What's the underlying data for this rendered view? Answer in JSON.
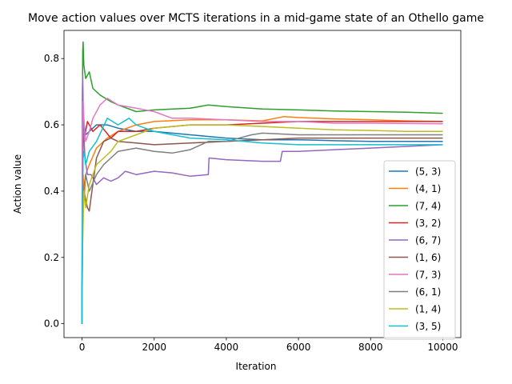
{
  "chart_data": {
    "type": "line",
    "title": "Move action values over MCTS iterations in a mid-game state of an Othello game",
    "xlabel": "Iteration",
    "ylabel": "Action value",
    "xlim": [
      -500,
      10500
    ],
    "ylim": [
      -0.042,
      0.885
    ],
    "xticks": [
      0,
      2000,
      4000,
      6000,
      8000,
      10000
    ],
    "xtick_labels": [
      "0",
      "2000",
      "4000",
      "6000",
      "8000",
      "10000"
    ],
    "yticks": [
      0.0,
      0.2,
      0.4,
      0.6,
      0.8
    ],
    "ytick_labels": [
      "0.0",
      "0.2",
      "0.4",
      "0.6",
      "0.8"
    ],
    "legend_position": "center-right",
    "series": [
      {
        "name": "(5, 3)",
        "color": "#1f77b4",
        "points": [
          [
            0,
            0
          ],
          [
            10,
            0.3
          ],
          [
            30,
            0.55
          ],
          [
            60,
            0.6
          ],
          [
            100,
            0.57
          ],
          [
            200,
            0.58
          ],
          [
            400,
            0.6
          ],
          [
            700,
            0.6
          ],
          [
            1000,
            0.59
          ],
          [
            1500,
            0.58
          ],
          [
            2000,
            0.58
          ],
          [
            3000,
            0.57
          ],
          [
            4000,
            0.56
          ],
          [
            5000,
            0.555
          ],
          [
            6000,
            0.555
          ],
          [
            7000,
            0.552
          ],
          [
            8000,
            0.55
          ],
          [
            9000,
            0.55
          ],
          [
            10000,
            0.55
          ]
        ]
      },
      {
        "name": "(4, 1)",
        "color": "#ff7f0e",
        "points": [
          [
            0,
            0
          ],
          [
            10,
            0.2
          ],
          [
            30,
            0.45
          ],
          [
            60,
            0.38
          ],
          [
            100,
            0.45
          ],
          [
            200,
            0.48
          ],
          [
            400,
            0.53
          ],
          [
            700,
            0.56
          ],
          [
            1000,
            0.58
          ],
          [
            1500,
            0.6
          ],
          [
            2000,
            0.61
          ],
          [
            3000,
            0.615
          ],
          [
            4000,
            0.615
          ],
          [
            5000,
            0.612
          ],
          [
            5600,
            0.625
          ],
          [
            6000,
            0.622
          ],
          [
            7000,
            0.618
          ],
          [
            8000,
            0.615
          ],
          [
            9000,
            0.612
          ],
          [
            10000,
            0.61
          ]
        ]
      },
      {
        "name": "(7, 4)",
        "color": "#2ca02c",
        "points": [
          [
            0,
            0
          ],
          [
            10,
            0.6
          ],
          [
            20,
            0.82
          ],
          [
            30,
            0.85
          ],
          [
            50,
            0.78
          ],
          [
            100,
            0.74
          ],
          [
            200,
            0.76
          ],
          [
            300,
            0.71
          ],
          [
            500,
            0.69
          ],
          [
            800,
            0.67
          ],
          [
            1000,
            0.66
          ],
          [
            1500,
            0.64
          ],
          [
            2000,
            0.645
          ],
          [
            3000,
            0.65
          ],
          [
            3500,
            0.66
          ],
          [
            4000,
            0.655
          ],
          [
            5000,
            0.648
          ],
          [
            6000,
            0.645
          ],
          [
            7000,
            0.642
          ],
          [
            8000,
            0.64
          ],
          [
            9000,
            0.638
          ],
          [
            10000,
            0.635
          ]
        ]
      },
      {
        "name": "(3, 2)",
        "color": "#d62728",
        "points": [
          [
            0,
            0
          ],
          [
            10,
            0.4
          ],
          [
            30,
            0.63
          ],
          [
            80,
            0.57
          ],
          [
            150,
            0.61
          ],
          [
            300,
            0.58
          ],
          [
            500,
            0.6
          ],
          [
            800,
            0.56
          ],
          [
            1000,
            0.58
          ],
          [
            1500,
            0.58
          ],
          [
            2000,
            0.59
          ],
          [
            3000,
            0.6
          ],
          [
            4000,
            0.6
          ],
          [
            5000,
            0.605
          ],
          [
            6000,
            0.61
          ],
          [
            7000,
            0.61
          ],
          [
            8000,
            0.61
          ],
          [
            9000,
            0.61
          ],
          [
            10000,
            0.61
          ]
        ]
      },
      {
        "name": "(6, 7)",
        "color": "#9467bd",
        "points": [
          [
            0,
            0
          ],
          [
            10,
            0.7
          ],
          [
            20,
            0.75
          ],
          [
            40,
            0.6
          ],
          [
            80,
            0.5
          ],
          [
            150,
            0.45
          ],
          [
            250,
            0.45
          ],
          [
            400,
            0.42
          ],
          [
            600,
            0.44
          ],
          [
            800,
            0.43
          ],
          [
            1000,
            0.44
          ],
          [
            1200,
            0.46
          ],
          [
            1500,
            0.45
          ],
          [
            2000,
            0.46
          ],
          [
            2500,
            0.455
          ],
          [
            3000,
            0.445
          ],
          [
            3500,
            0.45
          ],
          [
            3520,
            0.5
          ],
          [
            4000,
            0.495
          ],
          [
            5000,
            0.49
          ],
          [
            5500,
            0.49
          ],
          [
            5550,
            0.52
          ],
          [
            6000,
            0.52
          ],
          [
            7000,
            0.525
          ],
          [
            8000,
            0.53
          ],
          [
            9000,
            0.535
          ],
          [
            10000,
            0.54
          ]
        ]
      },
      {
        "name": "(1, 6)",
        "color": "#8c564b",
        "points": [
          [
            0,
            0
          ],
          [
            10,
            0.3
          ],
          [
            50,
            0.4
          ],
          [
            150,
            0.35
          ],
          [
            200,
            0.34
          ],
          [
            250,
            0.38
          ],
          [
            400,
            0.5
          ],
          [
            600,
            0.55
          ],
          [
            800,
            0.56
          ],
          [
            1000,
            0.55
          ],
          [
            1500,
            0.545
          ],
          [
            2000,
            0.54
          ],
          [
            3000,
            0.545
          ],
          [
            4000,
            0.55
          ],
          [
            5000,
            0.555
          ],
          [
            6000,
            0.56
          ],
          [
            7000,
            0.56
          ],
          [
            8000,
            0.56
          ],
          [
            9000,
            0.56
          ],
          [
            10000,
            0.56
          ]
        ]
      },
      {
        "name": "(7, 3)",
        "color": "#e377c2",
        "points": [
          [
            0,
            0
          ],
          [
            10,
            0.55
          ],
          [
            30,
            0.67
          ],
          [
            60,
            0.6
          ],
          [
            100,
            0.55
          ],
          [
            200,
            0.58
          ],
          [
            300,
            0.62
          ],
          [
            500,
            0.66
          ],
          [
            700,
            0.68
          ],
          [
            1000,
            0.66
          ],
          [
            1500,
            0.65
          ],
          [
            2000,
            0.64
          ],
          [
            2500,
            0.62
          ],
          [
            3000,
            0.62
          ],
          [
            4000,
            0.615
          ],
          [
            5000,
            0.61
          ],
          [
            6000,
            0.61
          ],
          [
            7000,
            0.605
          ],
          [
            8000,
            0.605
          ],
          [
            9000,
            0.604
          ],
          [
            10000,
            0.603
          ]
        ]
      },
      {
        "name": "(6, 1)",
        "color": "#7f7f7f",
        "points": [
          [
            0,
            0
          ],
          [
            10,
            0.25
          ],
          [
            40,
            0.4
          ],
          [
            100,
            0.45
          ],
          [
            200,
            0.4
          ],
          [
            400,
            0.45
          ],
          [
            600,
            0.48
          ],
          [
            800,
            0.5
          ],
          [
            1000,
            0.52
          ],
          [
            1500,
            0.53
          ],
          [
            2000,
            0.52
          ],
          [
            2500,
            0.515
          ],
          [
            3000,
            0.525
          ],
          [
            3500,
            0.55
          ],
          [
            4000,
            0.55
          ],
          [
            4700,
            0.57
          ],
          [
            5000,
            0.575
          ],
          [
            6000,
            0.57
          ],
          [
            7000,
            0.57
          ],
          [
            8000,
            0.57
          ],
          [
            9000,
            0.57
          ],
          [
            10000,
            0.57
          ]
        ]
      },
      {
        "name": "(1, 4)",
        "color": "#bcbd22",
        "points": [
          [
            0,
            0
          ],
          [
            10,
            0.2
          ],
          [
            50,
            0.4
          ],
          [
            100,
            0.35
          ],
          [
            200,
            0.42
          ],
          [
            400,
            0.48
          ],
          [
            600,
            0.5
          ],
          [
            800,
            0.52
          ],
          [
            1000,
            0.55
          ],
          [
            1500,
            0.57
          ],
          [
            2000,
            0.59
          ],
          [
            3000,
            0.6
          ],
          [
            4000,
            0.6
          ],
          [
            5000,
            0.595
          ],
          [
            6000,
            0.59
          ],
          [
            7000,
            0.585
          ],
          [
            8000,
            0.583
          ],
          [
            9000,
            0.58
          ],
          [
            10000,
            0.58
          ]
        ]
      },
      {
        "name": "(3, 5)",
        "color": "#17becf",
        "points": [
          [
            0,
            0
          ],
          [
            10,
            0.4
          ],
          [
            30,
            0.5
          ],
          [
            60,
            0.52
          ],
          [
            100,
            0.48
          ],
          [
            200,
            0.52
          ],
          [
            400,
            0.55
          ],
          [
            700,
            0.62
          ],
          [
            1000,
            0.6
          ],
          [
            1300,
            0.62
          ],
          [
            1500,
            0.6
          ],
          [
            2000,
            0.58
          ],
          [
            3000,
            0.56
          ],
          [
            4000,
            0.555
          ],
          [
            5000,
            0.545
          ],
          [
            6000,
            0.54
          ],
          [
            7000,
            0.54
          ],
          [
            8000,
            0.54
          ],
          [
            9000,
            0.54
          ],
          [
            10000,
            0.54
          ]
        ]
      }
    ]
  }
}
